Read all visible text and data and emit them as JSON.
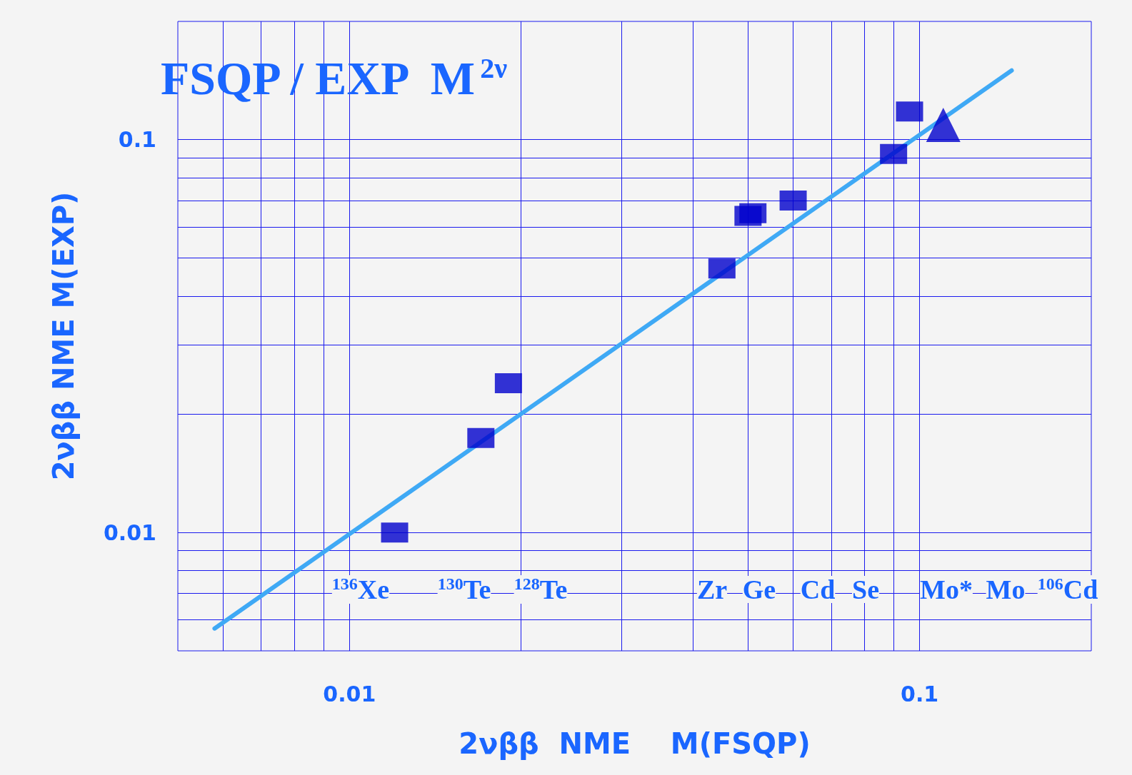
{
  "chart_data": {
    "type": "scatter",
    "title": "FSQP / EXP  M$^{2ν}$",
    "xlabel": "2νββ  NME    M(FSQP)",
    "ylabel": "2νββ NME M(EXP)",
    "log": "xy",
    "grid": true,
    "xlim": [
      0.005,
      0.2
    ],
    "ylim": [
      0.005,
      0.2
    ],
    "xticks": [
      {
        "value": 0.006,
        "label": null
      },
      {
        "value": 0.007,
        "label": null
      },
      {
        "value": 0.008,
        "label": null
      },
      {
        "value": 0.009,
        "label": null
      },
      0.01,
      {
        "value": 0.02,
        "label": null
      },
      {
        "value": 0.03,
        "label": null
      },
      {
        "value": 0.04,
        "label": null
      },
      {
        "value": 0.05,
        "label": null
      },
      {
        "value": 0.06,
        "label": null
      },
      {
        "value": 0.07,
        "label": null
      },
      {
        "value": 0.08,
        "label": null
      },
      {
        "value": 0.09,
        "label": null
      },
      0.1
    ],
    "yticks": [
      {
        "value": 0.006,
        "label": null
      },
      {
        "value": 0.007,
        "label": null
      },
      {
        "value": 0.008,
        "label": null
      },
      {
        "value": 0.009,
        "label": null
      },
      0.01,
      {
        "value": 0.02,
        "label": null
      },
      {
        "value": 0.03,
        "label": null
      },
      {
        "value": 0.04,
        "label": null
      },
      {
        "value": 0.05,
        "label": null
      },
      {
        "value": 0.06,
        "label": null
      },
      {
        "value": 0.07,
        "label": null
      },
      {
        "value": 0.08,
        "label": null
      },
      {
        "value": 0.09,
        "label": null
      },
      0.1
    ],
    "series": [
      {
        "type": "scatter",
        "marker": "square",
        "color": "#0000cc",
        "x": [
          0.012,
          0.017,
          0.019,
          0.045,
          0.05,
          0.051,
          0.06,
          0.09,
          0.096
        ],
        "values": [
          0.01,
          0.0174,
          0.024,
          0.047,
          0.064,
          0.065,
          0.07,
          0.092,
          0.118
        ]
      },
      {
        "type": "scatter",
        "marker": "triangle",
        "color": "#0000cc",
        "x": [
          0.11
        ],
        "values": [
          0.109
        ]
      },
      {
        "type": "line",
        "marker": "none",
        "color": "#3fa9f5",
        "x": [
          0.0058,
          0.145
        ],
        "values": [
          0.0057,
          0.15
        ]
      }
    ],
    "annotations": [
      "$^{136}$Xe",
      "$^{130}$Te",
      "$^{128}$Te",
      "Zr",
      "Ge",
      "Cd",
      "Se",
      "Mo*",
      "Mo",
      "$^{106}$Cd"
    ]
  }
}
